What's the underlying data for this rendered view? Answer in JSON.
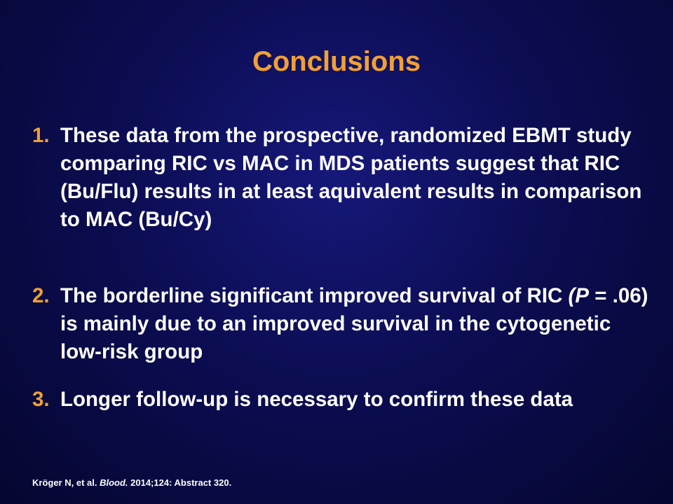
{
  "slide": {
    "title": "Conclusions",
    "items": [
      {
        "number": "1.",
        "text": "These data from the prospective, randomized EBMT study comparing RIC vs MAC in MDS patients suggest that RIC (Bu/Flu) results in at least aquivalent  results in comparison to MAC (Bu/Cy)"
      },
      {
        "number": "2.",
        "text_before": "The borderline significant improved survival of RIC ",
        "text_italic": "(P",
        "text_after": " = .06) is mainly due to an improved survival in the cytogenetic low-risk group"
      },
      {
        "number": "3.",
        "text": "Longer follow-up is necessary to confirm these data"
      }
    ],
    "citation": {
      "authors": "Kröger N, et al. ",
      "journal": "Blood.",
      "details": " 2014;124: Abstract 320."
    }
  },
  "colors": {
    "accent": "#f2a034",
    "text": "#ffffff",
    "background": "#0c0d52"
  }
}
